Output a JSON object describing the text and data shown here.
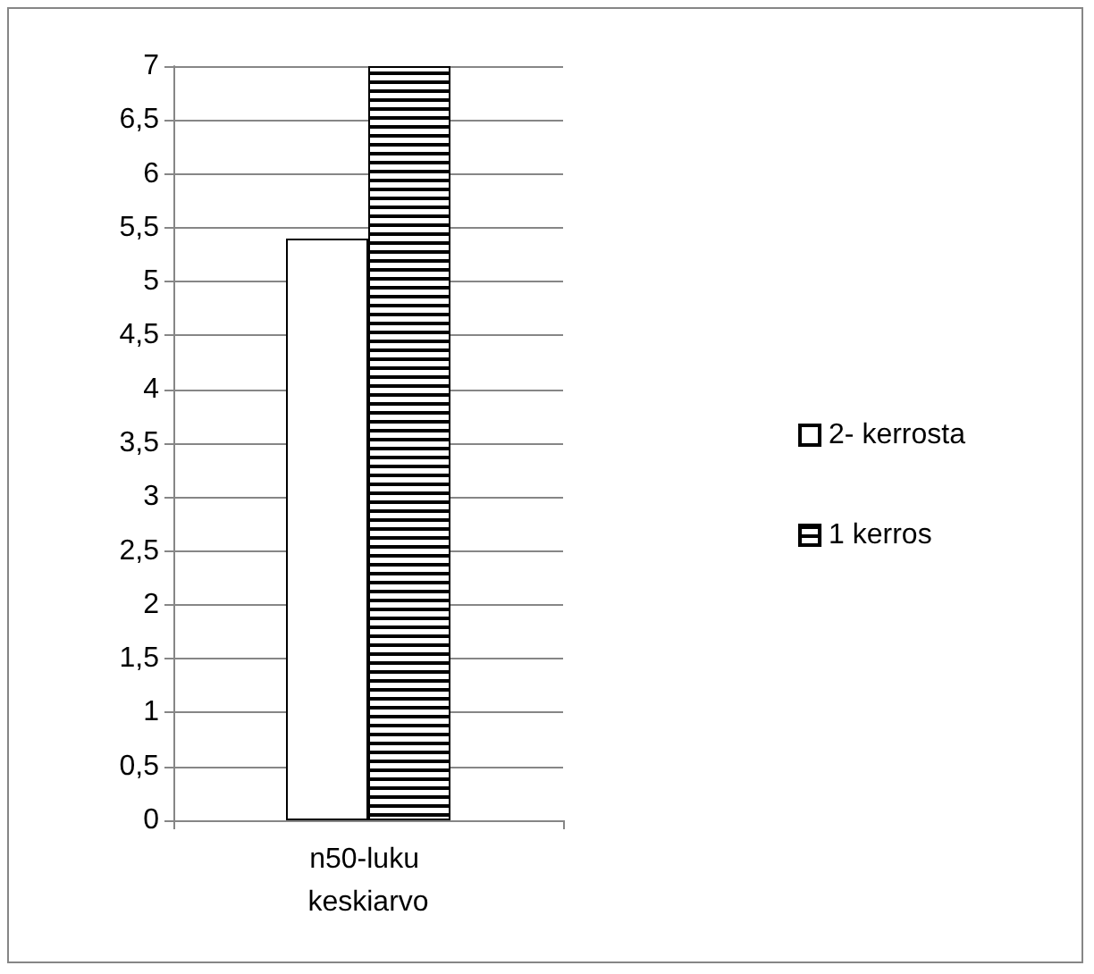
{
  "chart_data": {
    "type": "bar",
    "categories": [
      "n50-luku keskiarvo"
    ],
    "series": [
      {
        "name": "2- kerrosta",
        "color": "#ffffff",
        "values": [
          5.4
        ]
      },
      {
        "name": "1 kerros",
        "color": "#000000",
        "values": [
          7
        ]
      }
    ],
    "ylim": [
      0,
      7
    ],
    "yticks": [
      0,
      {
        "value": 0.5,
        "label": "0,5"
      },
      1,
      {
        "value": 1.5,
        "label": "1,5"
      },
      2,
      {
        "value": 2.5,
        "label": "2,5"
      },
      3,
      {
        "value": 3.5,
        "label": "3,5"
      },
      4,
      {
        "value": 4.5,
        "label": "4,5"
      },
      5,
      {
        "value": 5.5,
        "label": "5,5"
      },
      6,
      {
        "value": 6.5,
        "label": "6,5"
      },
      7
    ],
    "grid": "y",
    "legend": "right"
  }
}
